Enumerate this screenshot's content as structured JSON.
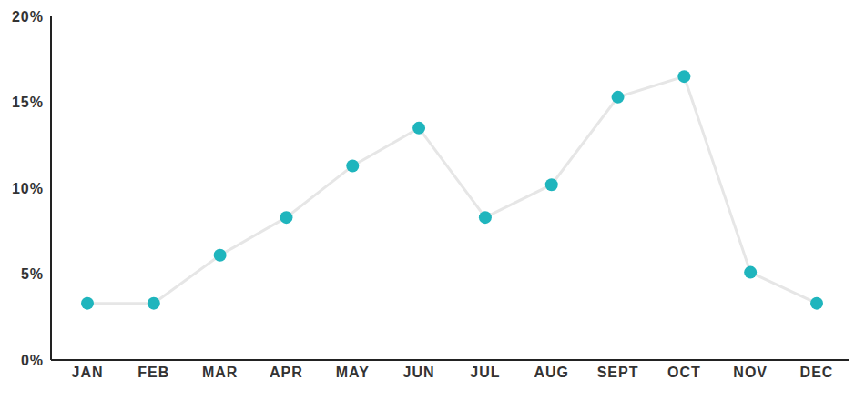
{
  "chart_data": {
    "type": "line",
    "categories": [
      "JAN",
      "FEB",
      "MAR",
      "APR",
      "MAY",
      "JUN",
      "JUL",
      "AUG",
      "SEPT",
      "OCT",
      "NOV",
      "DEC"
    ],
    "values": [
      3.3,
      3.3,
      6.1,
      8.3,
      11.3,
      13.5,
      8.3,
      10.2,
      15.3,
      16.5,
      5.1,
      3.3
    ],
    "color": "#1fb5bd",
    "marker": "circle",
    "ylim": [
      0,
      20
    ],
    "yticks": [
      {
        "value": 0,
        "label": "0%"
      },
      {
        "value": 5,
        "label": "5%"
      },
      {
        "value": 10,
        "label": "10%"
      },
      {
        "value": 15,
        "label": "15%"
      },
      {
        "value": 20,
        "label": "20%"
      }
    ],
    "grid": false
  }
}
